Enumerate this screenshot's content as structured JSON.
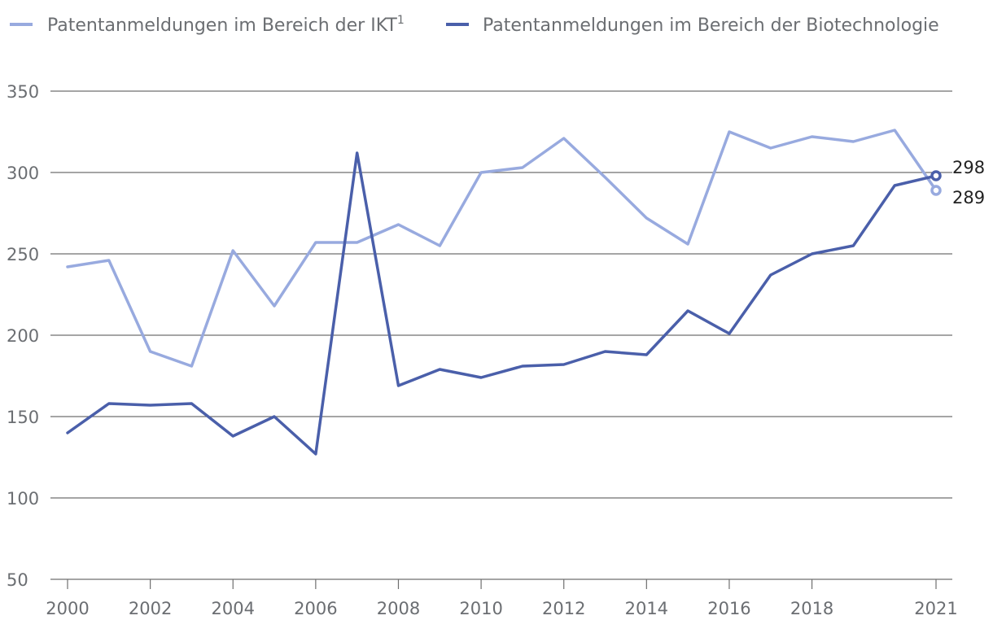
{
  "chart_data": {
    "type": "line",
    "title": "",
    "xlabel": "",
    "ylabel": "",
    "ylim": [
      50,
      350
    ],
    "y_ticks": [
      350,
      300,
      250,
      200,
      150,
      100,
      50
    ],
    "x_ticks": [
      "2000",
      "2002",
      "2004",
      "2006",
      "2008",
      "2010",
      "2012",
      "2014",
      "2016",
      "2018",
      "2021"
    ],
    "x": [
      2000,
      2001,
      2002,
      2003,
      2004,
      2005,
      2006,
      2007,
      2008,
      2009,
      2010,
      2011,
      2012,
      2013,
      2014,
      2015,
      2016,
      2017,
      2018,
      2019,
      2020,
      2021
    ],
    "series": [
      {
        "name": "Patentanmeldungen im Bereich der IKT",
        "superscript": "1",
        "color": "#98aadf",
        "values": [
          242,
          246,
          190,
          181,
          252,
          218,
          257,
          257,
          268,
          255,
          300,
          303,
          321,
          297,
          272,
          256,
          325,
          315,
          322,
          319,
          326,
          289
        ],
        "end_label": "289"
      },
      {
        "name": "Patentanmeldungen im Bereich der Biotechnologie",
        "color": "#4a5faa",
        "values": [
          140,
          158,
          157,
          158,
          138,
          150,
          127,
          312,
          169,
          179,
          174,
          181,
          182,
          190,
          188,
          215,
          201,
          237,
          250,
          255,
          292,
          298
        ],
        "end_label": "298"
      }
    ],
    "grid": true,
    "legend_position": "top"
  }
}
